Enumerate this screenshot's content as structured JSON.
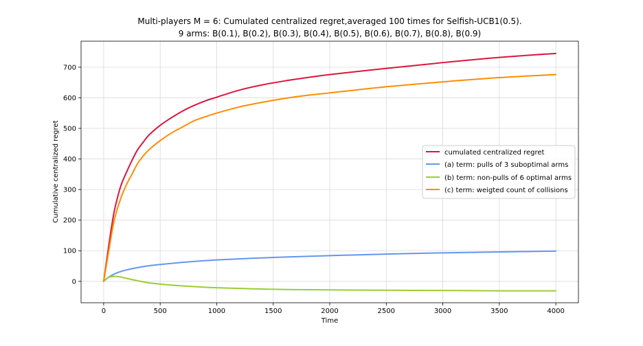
{
  "chart_data": {
    "type": "line",
    "title": "Multi-players M = 6: Cumulated centralized regret,averaged 100 times for Selfish-UCB1(0.5).",
    "subtitle": "9 arms: B(0.1), B(0.2), B(0.3), B(0.4), B(0.5), B(0.6), B(0.7), B(0.8), B(0.9)",
    "xlabel": "Time",
    "ylabel": "Cumulative centralized regret",
    "xlim": [
      -200,
      4200
    ],
    "ylim": [
      -70,
      785
    ],
    "xticks": [
      0,
      500,
      1000,
      1500,
      2000,
      2500,
      3000,
      3500,
      4000
    ],
    "yticks": [
      0,
      100,
      200,
      300,
      400,
      500,
      600,
      700
    ],
    "grid": true,
    "legend_position": "center-right",
    "series": [
      {
        "name": "cumulated centralized regret",
        "color": "#dc143c",
        "x": [
          0,
          25,
          50,
          75,
          100,
          150,
          200,
          250,
          300,
          350,
          400,
          500,
          600,
          700,
          800,
          900,
          1000,
          1200,
          1400,
          1600,
          1800,
          2000,
          2500,
          3000,
          3500,
          4000
        ],
        "y": [
          0,
          65,
          130,
          190,
          240,
          310,
          355,
          395,
          430,
          455,
          478,
          510,
          535,
          557,
          575,
          590,
          602,
          625,
          642,
          655,
          666,
          676,
          696,
          715,
          732,
          745
        ]
      },
      {
        "name": "(a) term: pulls of 3 suboptimal arms",
        "color": "#6495ed",
        "x": [
          0,
          25,
          50,
          100,
          150,
          200,
          300,
          400,
          500,
          700,
          1000,
          1500,
          2000,
          2500,
          3000,
          3500,
          4000
        ],
        "y": [
          0,
          8,
          15,
          25,
          32,
          37,
          45,
          51,
          55,
          62,
          70,
          78,
          84,
          89,
          93,
          96,
          99
        ]
      },
      {
        "name": "(b) term: non-pulls of 6 optimal arms",
        "color": "#9acd32",
        "x": [
          0,
          25,
          50,
          100,
          150,
          200,
          300,
          400,
          500,
          700,
          1000,
          1500,
          2000,
          2500,
          3000,
          3500,
          4000
        ],
        "y": [
          0,
          9,
          14,
          16,
          14,
          10,
          2,
          -5,
          -9,
          -15,
          -21,
          -26,
          -28,
          -29,
          -30,
          -31,
          -31
        ]
      },
      {
        "name": "(c) term: weigted count of collisions",
        "color": "#ff8c00",
        "x": [
          0,
          25,
          50,
          75,
          100,
          150,
          200,
          250,
          300,
          350,
          400,
          500,
          600,
          700,
          800,
          900,
          1000,
          1200,
          1400,
          1600,
          1800,
          2000,
          2500,
          3000,
          3500,
          4000
        ],
        "y": [
          0,
          55,
          110,
          165,
          210,
          270,
          315,
          350,
          385,
          410,
          430,
          460,
          485,
          505,
          525,
          538,
          550,
          570,
          585,
          598,
          608,
          616,
          636,
          652,
          666,
          676
        ]
      }
    ]
  }
}
